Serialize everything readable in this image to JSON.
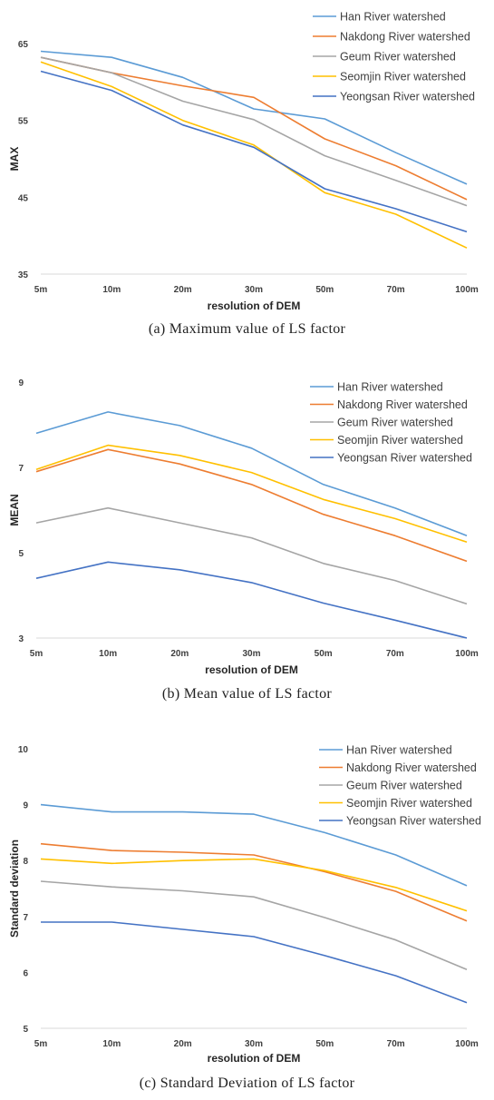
{
  "chart_data": [
    {
      "type": "line",
      "caption": "(a) Maximum value of LS factor",
      "xlabel": "resolution of DEM",
      "ylabel": "MAX",
      "categories": [
        "5m",
        "10m",
        "20m",
        "30m",
        "50m",
        "70m",
        "100m"
      ],
      "ylim": [
        35,
        65
      ],
      "yticks": [
        "35",
        "45",
        "55",
        "65"
      ],
      "legend_position": "top-right",
      "series": [
        {
          "name": "Han River watershed",
          "color": "#5B9BD5",
          "values": [
            64.0,
            63.2,
            60.6,
            56.5,
            55.2,
            50.8,
            46.7
          ]
        },
        {
          "name": "Nakdong River watershed",
          "color": "#ED7D31",
          "values": [
            63.2,
            61.2,
            59.5,
            58.0,
            52.6,
            49.1,
            44.7
          ]
        },
        {
          "name": "Geum River watershed",
          "color": "#A5A5A5",
          "values": [
            63.2,
            61.2,
            57.5,
            55.1,
            50.4,
            47.2,
            43.9
          ]
        },
        {
          "name": "Seomjin River watershed",
          "color": "#FFC000",
          "values": [
            62.6,
            59.4,
            55.0,
            51.8,
            45.6,
            42.8,
            38.4
          ]
        },
        {
          "name": "Yeongsan River watershed",
          "color": "#4472C4",
          "values": [
            61.4,
            58.9,
            54.4,
            51.5,
            46.1,
            43.5,
            40.5
          ]
        }
      ]
    },
    {
      "type": "line",
      "caption": "(b) Mean value of LS factor",
      "xlabel": "resolution of DEM",
      "ylabel": "MEAN",
      "categories": [
        "5m",
        "10m",
        "20m",
        "30m",
        "50m",
        "70m",
        "100m"
      ],
      "ylim": [
        3,
        9
      ],
      "yticks": [
        "3",
        "5",
        "7",
        "9"
      ],
      "legend_position": "top-right",
      "series": [
        {
          "name": "Han River watershed",
          "color": "#5B9BD5",
          "values": [
            7.8,
            8.3,
            7.98,
            7.45,
            6.6,
            6.05,
            5.4
          ]
        },
        {
          "name": "Nakdong River watershed",
          "color": "#ED7D31",
          "values": [
            6.9,
            7.42,
            7.08,
            6.6,
            5.9,
            5.4,
            4.8
          ]
        },
        {
          "name": "Geum River watershed",
          "color": "#A5A5A5",
          "values": [
            5.7,
            6.05,
            5.7,
            5.35,
            4.75,
            4.35,
            3.8
          ]
        },
        {
          "name": "Seomjin River watershed",
          "color": "#FFC000",
          "values": [
            6.95,
            7.52,
            7.28,
            6.88,
            6.25,
            5.8,
            5.25
          ]
        },
        {
          "name": "Yeongsan River watershed",
          "color": "#4472C4",
          "values": [
            4.4,
            4.78,
            4.6,
            4.3,
            3.82,
            3.42,
            3.0
          ]
        }
      ]
    },
    {
      "type": "line",
      "caption": "(c) Standard Deviation of LS factor",
      "xlabel": "resolution of DEM",
      "ylabel": "Standard deviation",
      "categories": [
        "5m",
        "10m",
        "20m",
        "30m",
        "50m",
        "70m",
        "100m"
      ],
      "ylim": [
        5,
        10
      ],
      "yticks": [
        "5",
        "6",
        "7",
        "8",
        "9",
        "10"
      ],
      "legend_position": "top-right",
      "series": [
        {
          "name": "Han River watershed",
          "color": "#5B9BD5",
          "values": [
            9.0,
            8.87,
            8.87,
            8.83,
            8.5,
            8.1,
            7.55
          ]
        },
        {
          "name": "Nakdong River watershed",
          "color": "#ED7D31",
          "values": [
            8.3,
            8.18,
            8.15,
            8.1,
            7.8,
            7.45,
            6.92
          ]
        },
        {
          "name": "Geum River watershed",
          "color": "#A5A5A5",
          "values": [
            7.63,
            7.53,
            7.46,
            7.35,
            6.98,
            6.58,
            6.05
          ]
        },
        {
          "name": "Seomjin River watershed",
          "color": "#FFC000",
          "values": [
            8.03,
            7.95,
            8.0,
            8.03,
            7.82,
            7.52,
            7.1
          ]
        },
        {
          "name": "Yeongsan River watershed",
          "color": "#4472C4",
          "values": [
            6.9,
            6.9,
            6.77,
            6.64,
            6.3,
            5.94,
            5.46
          ]
        }
      ]
    }
  ]
}
